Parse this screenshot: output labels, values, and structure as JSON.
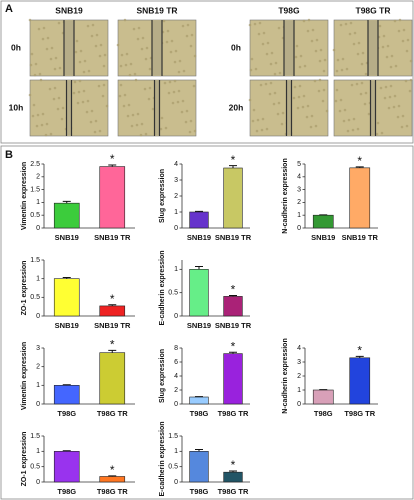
{
  "panel_a": {
    "label": "A",
    "groups": [
      {
        "columns": [
          "SNB19",
          "SNB19  TR"
        ],
        "rows": [
          "0h",
          "10h"
        ]
      },
      {
        "columns": [
          "T98G",
          "T98G  TR"
        ],
        "rows": [
          "0h",
          "20h"
        ]
      }
    ]
  },
  "panel_b": {
    "label": "B"
  },
  "chart_data": [
    {
      "type": "bar",
      "ylabel": "Vimentin expression",
      "categories": [
        "SNB19",
        "SNB19 TR"
      ],
      "values": [
        0.97,
        2.4
      ],
      "errors": [
        0.07,
        0.06
      ],
      "colors": [
        "#3ccc3c",
        "#ff6699"
      ],
      "ylim": [
        0,
        2.5
      ],
      "yticks": [
        0,
        0.5,
        1,
        1.5,
        2,
        2.5
      ],
      "annotation": "*"
    },
    {
      "type": "bar",
      "ylabel": "Slug expression",
      "categories": [
        "SNB19",
        "SNB19 TR"
      ],
      "values": [
        1.0,
        3.75
      ],
      "errors": [
        0.04,
        0.15
      ],
      "colors": [
        "#6633cc",
        "#c8c864"
      ],
      "ylim": [
        0,
        4
      ],
      "yticks": [
        0,
        1,
        2,
        3,
        4
      ],
      "annotation": "*"
    },
    {
      "type": "bar",
      "ylabel": "N-cadherin expression",
      "categories": [
        "SNB19",
        "SNB19 TR"
      ],
      "values": [
        1.0,
        4.7
      ],
      "errors": [
        0.03,
        0.08
      ],
      "colors": [
        "#339933",
        "#ffaa66"
      ],
      "ylim": [
        0,
        5
      ],
      "yticks": [
        0,
        1,
        2,
        3,
        4,
        5
      ],
      "annotation": "*"
    },
    {
      "type": "bar",
      "ylabel": "ZO-1 expression",
      "categories": [
        "SNB19",
        "SNB19 TR"
      ],
      "values": [
        1.0,
        0.27
      ],
      "errors": [
        0.03,
        0.03
      ],
      "colors": [
        "#ffff33",
        "#ee2222"
      ],
      "ylim": [
        0,
        1.5
      ],
      "yticks": [
        0,
        0.5,
        1,
        1.5
      ],
      "annotation": "*"
    },
    {
      "type": "bar",
      "ylabel": "E-cadherin expression",
      "categories": [
        "SNB19",
        "SNB19 TR"
      ],
      "values": [
        1.0,
        0.42
      ],
      "errors": [
        0.06,
        0.02
      ],
      "colors": [
        "#66ee88",
        "#aa2277"
      ],
      "ylim": [
        0,
        1.2
      ],
      "yticks": [
        0,
        0.5,
        1
      ],
      "annotation": "*"
    },
    {
      "type": "bar",
      "ylabel": "Vimentin expression",
      "categories": [
        "T98G",
        "T98G TR"
      ],
      "values": [
        1.0,
        2.75
      ],
      "errors": [
        0.03,
        0.12
      ],
      "colors": [
        "#4466ff",
        "#cccc33"
      ],
      "ylim": [
        0,
        3
      ],
      "yticks": [
        0,
        1,
        2,
        3
      ],
      "annotation": "*"
    },
    {
      "type": "bar",
      "ylabel": "Slug expression",
      "categories": [
        "T98G",
        "T98G TR"
      ],
      "values": [
        1.0,
        7.2
      ],
      "errors": [
        0.05,
        0.2
      ],
      "colors": [
        "#99ccff",
        "#9922dd"
      ],
      "ylim": [
        0,
        8
      ],
      "yticks": [
        0,
        2,
        4,
        6,
        8
      ],
      "annotation": "*"
    },
    {
      "type": "bar",
      "ylabel": "N-cadherin expression",
      "categories": [
        "T98G",
        "T98G TR"
      ],
      "values": [
        1.0,
        3.3
      ],
      "errors": [
        0.03,
        0.1
      ],
      "colors": [
        "#d8a0b8",
        "#2244dd"
      ],
      "ylim": [
        0,
        4
      ],
      "yticks": [
        0,
        1,
        2,
        3,
        4
      ],
      "annotation": "*"
    },
    {
      "type": "bar",
      "ylabel": "ZO-1 expression",
      "categories": [
        "T98G",
        "T98G TR"
      ],
      "values": [
        1.0,
        0.18
      ],
      "errors": [
        0.02,
        0.02
      ],
      "colors": [
        "#9933ee",
        "#ff7722"
      ],
      "ylim": [
        0,
        1.5
      ],
      "yticks": [
        0,
        0.5,
        1,
        1.5
      ],
      "annotation": "*"
    },
    {
      "type": "bar",
      "ylabel": "E-cadherin expression",
      "categories": [
        "T98G",
        "T98G TR"
      ],
      "values": [
        1.0,
        0.32
      ],
      "errors": [
        0.06,
        0.04
      ],
      "colors": [
        "#5588dd",
        "#225566"
      ],
      "ylim": [
        0,
        1.5
      ],
      "yticks": [
        0,
        0.5,
        1,
        1.5
      ],
      "annotation": "*"
    }
  ]
}
